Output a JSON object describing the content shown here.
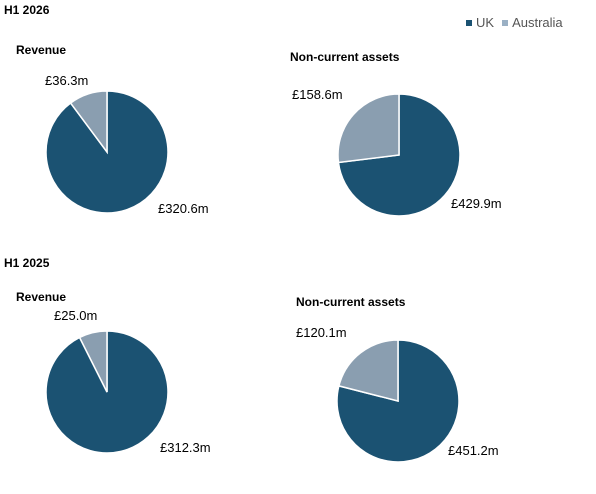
{
  "legend": [
    {
      "label": "UK",
      "color": "#1b5272"
    },
    {
      "label": "Australia",
      "color": "#9ab0c4"
    }
  ],
  "sections": [
    {
      "title": "H1 2026"
    },
    {
      "title": "H1 2025"
    }
  ],
  "colors": {
    "uk": "#1b5272",
    "australia": "#8a9eb0",
    "stroke": "#ffffff"
  },
  "chart_data": [
    {
      "type": "pie",
      "title": "Revenue",
      "group": "H1 2026",
      "categories": [
        "UK",
        "Australia"
      ],
      "values": [
        320.6,
        36.3
      ],
      "labels": [
        "£320.6m",
        "£36.3m"
      ]
    },
    {
      "type": "pie",
      "title": "Non-current assets",
      "group": "H1 2026",
      "categories": [
        "UK",
        "Australia"
      ],
      "values": [
        429.9,
        158.6
      ],
      "labels": [
        "£429.9m",
        "£158.6m"
      ]
    },
    {
      "type": "pie",
      "title": "Revenue",
      "group": "H1 2025",
      "categories": [
        "UK",
        "Australia"
      ],
      "values": [
        312.3,
        25.0
      ],
      "labels": [
        "£312.3m",
        "£25.0m"
      ]
    },
    {
      "type": "pie",
      "title": "Non-current assets",
      "group": "H1 2025",
      "categories": [
        "UK",
        "Australia"
      ],
      "values": [
        451.2,
        120.1
      ],
      "labels": [
        "£451.2m",
        "£120.1m"
      ]
    }
  ]
}
